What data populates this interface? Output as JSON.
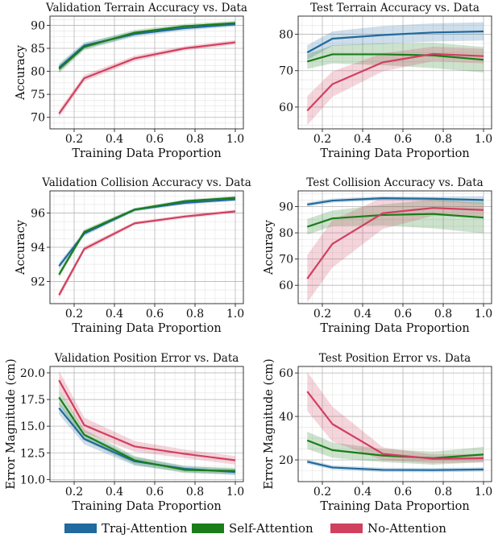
{
  "colors": {
    "traj": "#1f6a9e",
    "self": "#1a7d1a",
    "none": "#d0405f"
  },
  "legend": [
    {
      "name": "Traj-Attention",
      "color": "#1f6a9e"
    },
    {
      "name": "Self-Attention",
      "color": "#1a7d1a"
    },
    {
      "name": "No-Attention",
      "color": "#d0405f"
    }
  ],
  "chart_data": [
    {
      "type": "line",
      "title": "Validation Terrain Accuracy vs. Data",
      "xlabel": "Training Data Proportion",
      "ylabel": "Accuracy",
      "xlim": [
        0.08,
        1.04
      ],
      "ylim": [
        67.5,
        92
      ],
      "xticks": [
        0.2,
        0.4,
        0.6,
        0.8,
        1.0
      ],
      "yticks": [
        70,
        75,
        80,
        85,
        90
      ],
      "x": [
        0.125,
        0.25,
        0.5,
        0.75,
        1.0
      ],
      "series": [
        {
          "name": "Traj-Attention",
          "values": [
            80.8,
            85.6,
            88.1,
            89.4,
            90.2
          ],
          "band": [
            0.9,
            0.7,
            0.6,
            0.5,
            0.5
          ]
        },
        {
          "name": "Self-Attention",
          "values": [
            80.5,
            85.3,
            88.4,
            89.8,
            90.5
          ],
          "band": [
            0.9,
            0.7,
            0.6,
            0.5,
            0.5
          ]
        },
        {
          "name": "No-Attention",
          "values": [
            70.8,
            78.5,
            82.8,
            85.0,
            86.3
          ],
          "band": [
            0.8,
            0.7,
            0.6,
            0.5,
            0.5
          ]
        }
      ]
    },
    {
      "type": "line",
      "title": "Test Terrain Accuracy vs. Data",
      "xlabel": "Training Data Proportion",
      "ylabel": "",
      "xlim": [
        0.08,
        1.04
      ],
      "ylim": [
        54,
        85
      ],
      "xticks": [
        0.2,
        0.4,
        0.6,
        0.8,
        1.0
      ],
      "yticks": [
        60,
        70,
        80
      ],
      "x": [
        0.125,
        0.25,
        0.5,
        0.75,
        1.0
      ],
      "series": [
        {
          "name": "Traj-Attention",
          "values": [
            75.0,
            78.8,
            79.8,
            80.5,
            80.8
          ],
          "band": [
            2.0,
            2.0,
            2.5,
            2.5,
            2.5
          ]
        },
        {
          "name": "Self-Attention",
          "values": [
            72.5,
            74.5,
            74.5,
            74.2,
            73.0
          ],
          "band": [
            2.0,
            2.5,
            3.0,
            3.5,
            3.5
          ]
        },
        {
          "name": "No-Attention",
          "values": [
            59.0,
            66.3,
            72.3,
            74.6,
            74.0
          ],
          "band": [
            4.0,
            3.5,
            2.5,
            2.0,
            2.0
          ]
        }
      ]
    },
    {
      "type": "line",
      "title": "Validation Collision Accuracy vs. Data",
      "xlabel": "Training Data Proportion",
      "ylabel": "Accuracy",
      "xlim": [
        0.08,
        1.04
      ],
      "ylim": [
        90.7,
        97.3
      ],
      "xticks": [
        0.2,
        0.4,
        0.6,
        0.8,
        1.0
      ],
      "yticks": [
        92,
        94,
        96
      ],
      "x": [
        0.125,
        0.25,
        0.5,
        0.75,
        1.0
      ],
      "series": [
        {
          "name": "Traj-Attention",
          "values": [
            92.9,
            94.8,
            96.2,
            96.6,
            96.8
          ],
          "band": [
            0.2,
            0.15,
            0.1,
            0.1,
            0.1
          ]
        },
        {
          "name": "Self-Attention",
          "values": [
            92.4,
            94.9,
            96.2,
            96.7,
            96.9
          ],
          "band": [
            0.2,
            0.15,
            0.1,
            0.1,
            0.1
          ]
        },
        {
          "name": "No-Attention",
          "values": [
            91.2,
            93.9,
            95.4,
            95.8,
            96.1
          ],
          "band": [
            0.2,
            0.15,
            0.1,
            0.1,
            0.1
          ]
        }
      ]
    },
    {
      "type": "line",
      "title": "Test Collision Accuracy vs. Data",
      "xlabel": "Training Data Proportion",
      "ylabel": "Accuracy",
      "xlim": [
        0.08,
        1.04
      ],
      "ylim": [
        53,
        96
      ],
      "xticks": [
        0.2,
        0.4,
        0.6,
        0.8,
        1.0
      ],
      "yticks": [
        60,
        70,
        80,
        90
      ],
      "x": [
        0.125,
        0.25,
        0.5,
        0.75,
        1.0
      ],
      "series": [
        {
          "name": "Traj-Attention",
          "values": [
            90.8,
            92.3,
            93.2,
            93.0,
            92.5
          ],
          "band": [
            0.8,
            0.8,
            0.8,
            0.8,
            1.5
          ]
        },
        {
          "name": "Self-Attention",
          "values": [
            82.3,
            85.5,
            86.8,
            87.2,
            85.8
          ],
          "band": [
            3.0,
            3.0,
            4.0,
            5.5,
            6.0
          ]
        },
        {
          "name": "No-Attention",
          "values": [
            62.5,
            75.8,
            87.5,
            89.5,
            88.7
          ],
          "band": [
            9.0,
            9.0,
            6.0,
            3.0,
            2.5
          ]
        }
      ]
    },
    {
      "type": "line",
      "title": "Validation Position Error vs. Data",
      "xlabel": "Training Data Proportion",
      "ylabel": "Error Magnitude (cm)",
      "xlim": [
        0.08,
        1.04
      ],
      "ylim": [
        9.8,
        20.6
      ],
      "xticks": [
        0.2,
        0.4,
        0.6,
        0.8,
        1.0
      ],
      "yticks": [
        10.0,
        12.5,
        15.0,
        17.5,
        20.0
      ],
      "yfmt": 1,
      "x": [
        0.125,
        0.25,
        0.5,
        0.75,
        1.0
      ],
      "series": [
        {
          "name": "Traj-Attention",
          "values": [
            16.7,
            13.8,
            11.7,
            11.0,
            10.7
          ],
          "band": [
            0.6,
            0.5,
            0.4,
            0.3,
            0.3
          ]
        },
        {
          "name": "Self-Attention",
          "values": [
            17.7,
            14.2,
            11.8,
            10.9,
            10.8
          ],
          "band": [
            0.7,
            0.5,
            0.4,
            0.3,
            0.3
          ]
        },
        {
          "name": "No-Attention",
          "values": [
            19.3,
            15.1,
            13.1,
            12.4,
            11.8
          ],
          "band": [
            0.9,
            0.7,
            0.5,
            0.4,
            0.4
          ]
        }
      ]
    },
    {
      "type": "line",
      "title": "Test Position Error vs. Data",
      "xlabel": "Training Data Proportion",
      "ylabel": "Error Magnitude (cm)",
      "xlim": [
        0.08,
        1.04
      ],
      "ylim": [
        10,
        63
      ],
      "xticks": [
        0.2,
        0.4,
        0.6,
        0.8,
        1.0
      ],
      "yticks": [
        20,
        40,
        60
      ],
      "x": [
        0.125,
        0.25,
        0.5,
        0.75,
        1.0
      ],
      "series": [
        {
          "name": "Traj-Attention",
          "values": [
            19.2,
            16.5,
            15.4,
            15.3,
            15.6
          ],
          "band": [
            1.0,
            1.0,
            1.0,
            1.0,
            1.0
          ]
        },
        {
          "name": "Self-Attention",
          "values": [
            29.0,
            24.5,
            22.0,
            20.8,
            22.5
          ],
          "band": [
            4.0,
            3.5,
            3.0,
            3.0,
            3.5
          ]
        },
        {
          "name": "No-Attention",
          "values": [
            51.5,
            36.5,
            22.8,
            20.5,
            20.8
          ],
          "band": [
            9.0,
            8.0,
            3.0,
            2.0,
            2.0
          ]
        }
      ]
    }
  ]
}
